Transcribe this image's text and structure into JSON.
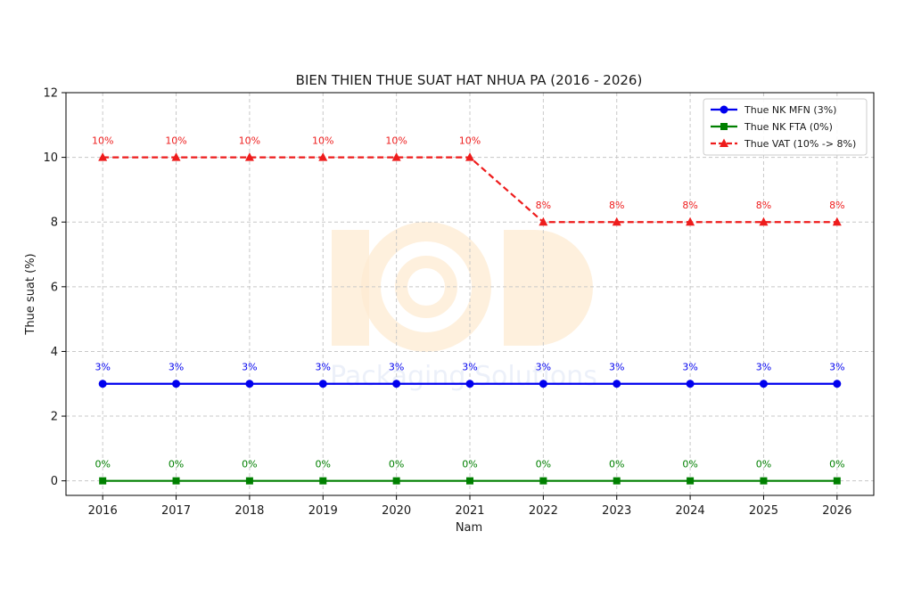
{
  "chart_data": {
    "type": "line",
    "title": "BIEN THIEN THUE SUAT HAT NHUA PA (2016 - 2026)",
    "xlabel": "Nam",
    "ylabel": "Thue suat (%)",
    "x": [
      2016,
      2017,
      2018,
      2019,
      2020,
      2021,
      2022,
      2023,
      2024,
      2025,
      2026
    ],
    "ylim": [
      -0.45,
      12
    ],
    "yticks": [
      0,
      2,
      4,
      6,
      8,
      10,
      12
    ],
    "grid": true,
    "legend_position": "top-right",
    "series": [
      {
        "name": "Thue NK MFN (3%)",
        "values": [
          3,
          3,
          3,
          3,
          3,
          3,
          3,
          3,
          3,
          3,
          3
        ],
        "labels": [
          "3%",
          "3%",
          "3%",
          "3%",
          "3%",
          "3%",
          "3%",
          "3%",
          "3%",
          "3%",
          "3%"
        ],
        "color": "#0000ee",
        "marker": "circle",
        "line_style": "solid"
      },
      {
        "name": "Thue NK FTA (0%)",
        "values": [
          0,
          0,
          0,
          0,
          0,
          0,
          0,
          0,
          0,
          0,
          0
        ],
        "labels": [
          "0%",
          "0%",
          "0%",
          "0%",
          "0%",
          "0%",
          "0%",
          "0%",
          "0%",
          "0%",
          "0%"
        ],
        "color": "#008000",
        "marker": "square",
        "line_style": "solid"
      },
      {
        "name": "Thue VAT (10% -> 8%)",
        "values": [
          10,
          10,
          10,
          10,
          10,
          10,
          8,
          8,
          8,
          8,
          8
        ],
        "labels": [
          "10%",
          "10%",
          "10%",
          "10%",
          "10%",
          "10%",
          "8%",
          "8%",
          "8%",
          "8%",
          "8%"
        ],
        "color": "#ee1c1c",
        "marker": "triangle",
        "line_style": "dashed"
      }
    ]
  },
  "watermark": {
    "text": "Packaging Solutions",
    "logo_color": "#fde7c8"
  }
}
